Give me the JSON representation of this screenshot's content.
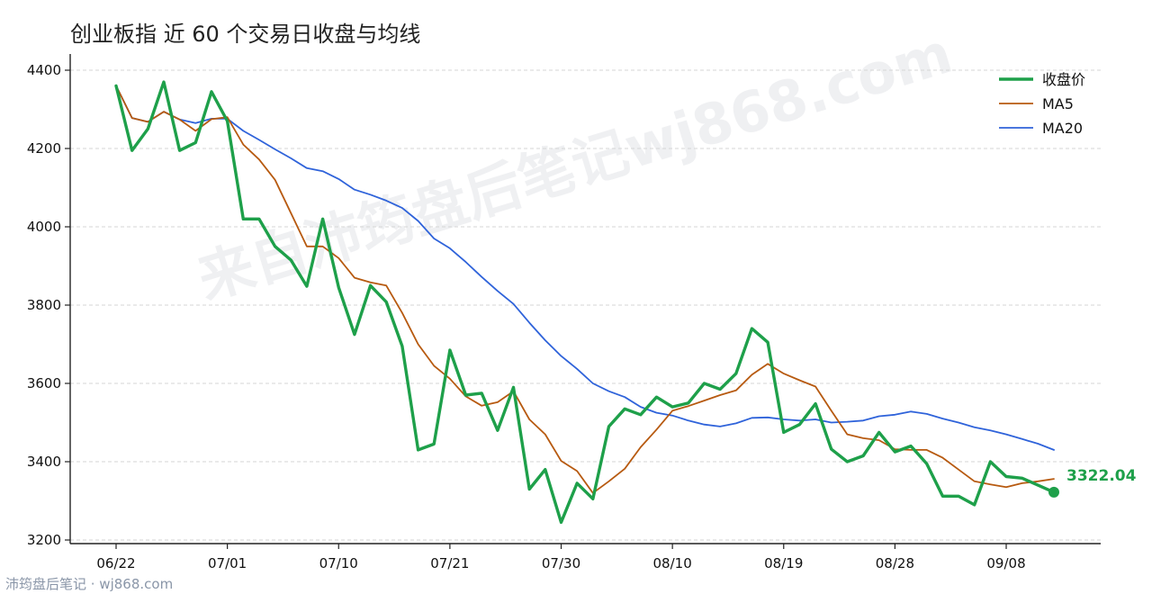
{
  "title": "创业板指 近 60 个交易日收盘与均线",
  "watermark": "来自沛筠盘后笔记wj868.com",
  "footer": "沛筠盘后笔记 · wj868.com",
  "chart_data": {
    "type": "line",
    "title": "创业板指 近 60 个交易日收盘与均线",
    "ylim": [
      3200,
      4400
    ],
    "yticks": [
      3200,
      3400,
      3600,
      3800,
      4000,
      4200,
      4400
    ],
    "xticks": [
      {
        "index": 0,
        "label": "06/22"
      },
      {
        "index": 7,
        "label": "07/01"
      },
      {
        "index": 14,
        "label": "07/10"
      },
      {
        "index": 21,
        "label": "07/21"
      },
      {
        "index": 28,
        "label": "07/30"
      },
      {
        "index": 35,
        "label": "08/10"
      },
      {
        "index": 42,
        "label": "08/19"
      },
      {
        "index": 49,
        "label": "08/28"
      },
      {
        "index": 56,
        "label": "09/08"
      }
    ],
    "grid": "horizontal-dashed",
    "legend_position": "top-right",
    "last_value_label": "3322.04",
    "series": [
      {
        "name": "收盘价",
        "color": "#1ea04a",
        "values": [
          4360,
          4195,
          4250,
          4370,
          4195,
          4215,
          4345,
          4270,
          4020,
          4020,
          3950,
          3915,
          3848,
          4020,
          3845,
          3725,
          3850,
          3808,
          3695,
          3430,
          3445,
          3685,
          3570,
          3575,
          3480,
          3590,
          3330,
          3380,
          3245,
          3345,
          3305,
          3490,
          3535,
          3520,
          3565,
          3540,
          3550,
          3600,
          3585,
          3625,
          3740,
          3705,
          3475,
          3495,
          3548,
          3432,
          3400,
          3415,
          3475,
          3425,
          3440,
          3395,
          3312,
          3312,
          3290,
          3400,
          3362,
          3358,
          3340,
          3322.04
        ]
      },
      {
        "name": "MA5",
        "color": "#b75a10",
        "values": [
          4360,
          4278,
          4268,
          4294,
          4274,
          4245,
          4275,
          4280,
          4210,
          4172,
          4120,
          4035,
          3950,
          3950,
          3920,
          3870,
          3858,
          3850,
          3780,
          3700,
          3645,
          3612,
          3567,
          3543,
          3552,
          3580,
          3508,
          3470,
          3402,
          3376,
          3320,
          3350,
          3382,
          3437,
          3482,
          3530,
          3542,
          3556,
          3570,
          3582,
          3622,
          3650,
          3625,
          3608,
          3592,
          3530,
          3470,
          3460,
          3455,
          3432,
          3430,
          3430,
          3410,
          3380,
          3350,
          3342,
          3335,
          3345,
          3350,
          3356
        ]
      },
      {
        "name": "MA20",
        "color": "#2f63da",
        "values": [
          4360,
          4278,
          4268,
          4294,
          4274,
          4265,
          4276,
          4276,
          4245,
          4222,
          4198,
          4175,
          4150,
          4142,
          4122,
          4095,
          4082,
          4067,
          4048,
          4015,
          3970,
          3945,
          3910,
          3872,
          3836,
          3803,
          3755,
          3710,
          3670,
          3637,
          3600,
          3580,
          3565,
          3540,
          3525,
          3518,
          3505,
          3495,
          3490,
          3498,
          3512,
          3513,
          3508,
          3505,
          3508,
          3500,
          3502,
          3505,
          3516,
          3520,
          3528,
          3522,
          3510,
          3500,
          3488,
          3480,
          3470,
          3458,
          3446,
          3430
        ]
      }
    ]
  }
}
